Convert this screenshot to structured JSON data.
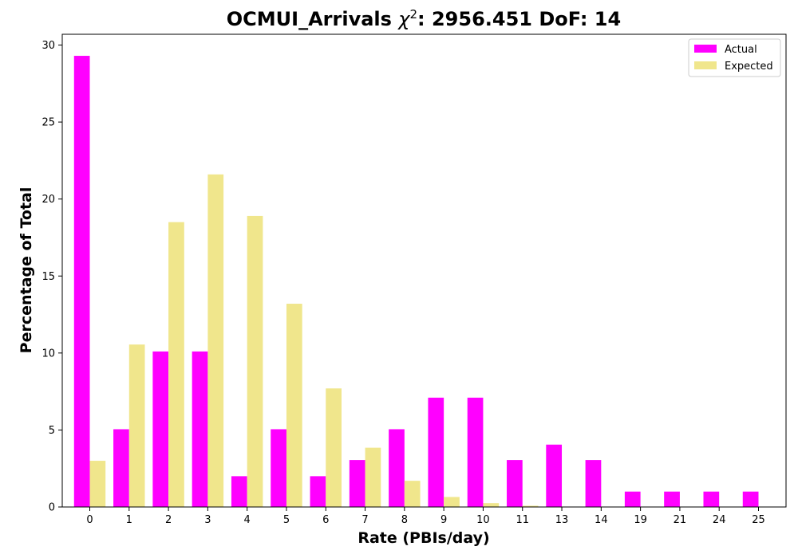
{
  "chart_data": {
    "type": "bar",
    "title_main": "OCMUI_Arrivals ",
    "title_chi": "χ",
    "title_sup": "2",
    "title_rest": ": 2956.451 DoF: 14",
    "xlabel": "Rate (PBIs/day)",
    "ylabel": "Percentage of Total",
    "ylim": [
      0,
      30.7
    ],
    "yticks": [
      0,
      5,
      10,
      15,
      20,
      25,
      30
    ],
    "categories": [
      "0",
      "1",
      "2",
      "3",
      "4",
      "5",
      "6",
      "7",
      "8",
      "9",
      "10",
      "11",
      "13",
      "14",
      "19",
      "21",
      "24",
      "25"
    ],
    "series": [
      {
        "name": "Actual",
        "color": "#ff00ff",
        "values": [
          29.3,
          5.05,
          10.1,
          10.1,
          2.0,
          5.05,
          2.0,
          3.05,
          5.05,
          7.1,
          7.1,
          3.05,
          4.05,
          3.05,
          1.0,
          1.0,
          1.0,
          1.0
        ]
      },
      {
        "name": "Expected",
        "color": "#f0e68c",
        "values": [
          3.0,
          10.55,
          18.5,
          21.6,
          18.9,
          13.2,
          7.7,
          3.85,
          1.7,
          0.65,
          0.25,
          0.08,
          0.02,
          0.0,
          0.0,
          0.0,
          0.0,
          0.0
        ]
      }
    ],
    "legend_position": "top-right",
    "grid": false
  }
}
